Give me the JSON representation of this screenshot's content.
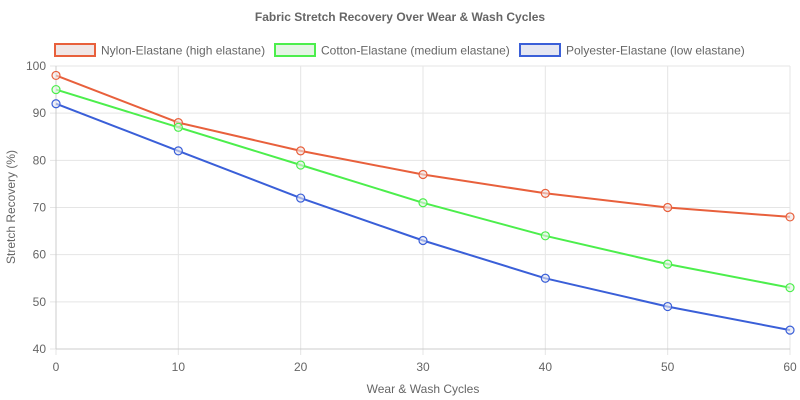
{
  "chart_data": {
    "type": "line",
    "title": "Fabric Stretch Recovery Over Wear & Wash Cycles",
    "xlabel": "Wear & Wash Cycles",
    "ylabel": "Stretch Recovery (%)",
    "x": [
      0,
      10,
      20,
      30,
      40,
      50,
      60
    ],
    "xlim": [
      0,
      60
    ],
    "ylim": [
      40,
      100
    ],
    "x_ticks": [
      0,
      10,
      20,
      30,
      40,
      50,
      60
    ],
    "y_ticks": [
      40,
      50,
      60,
      70,
      80,
      90,
      100
    ],
    "grid": true,
    "legend_position": "top",
    "series": [
      {
        "name": "Nylon-Elastane (high elastane)",
        "color": "#e8603c",
        "fill": "#f0e6e6",
        "values": [
          98,
          88,
          82,
          77,
          73,
          70,
          68
        ]
      },
      {
        "name": "Cotton-Elastane (medium elastane)",
        "color": "#4cee4c",
        "fill": "#e4f4e4",
        "values": [
          95,
          87,
          79,
          71,
          64,
          58,
          53
        ]
      },
      {
        "name": "Polyester-Elastane (low elastane)",
        "color": "#3a5fd8",
        "fill": "#e4e6f2",
        "values": [
          92,
          82,
          72,
          63,
          55,
          49,
          44
        ]
      }
    ]
  }
}
